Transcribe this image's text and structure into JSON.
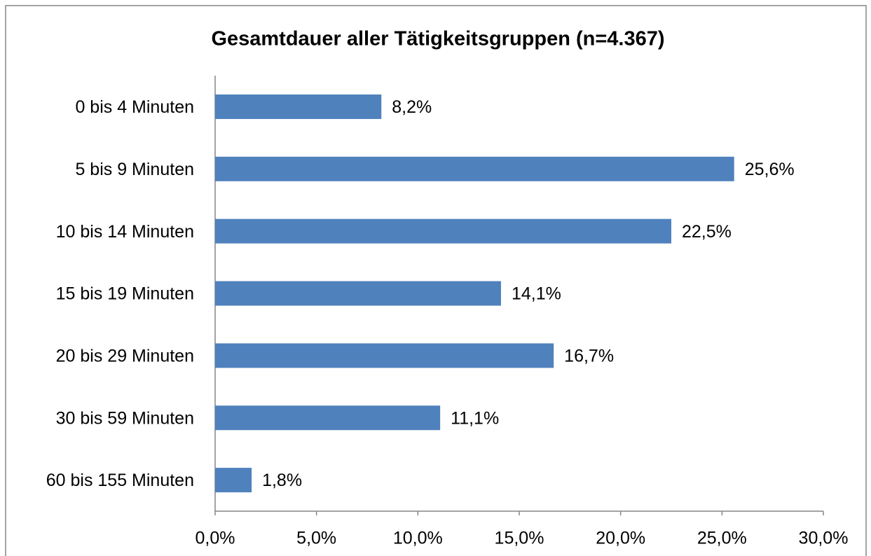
{
  "chart_data": {
    "type": "bar",
    "orientation": "horizontal",
    "title": "Gesamtdauer aller Tätigkeitsgruppen (n=4.367)",
    "categories": [
      "0 bis 4 Minuten",
      "5 bis 9 Minuten",
      "10 bis 14 Minuten",
      "15 bis 19 Minuten",
      "20 bis 29 Minuten",
      "30 bis 59 Minuten",
      "60 bis 155 Minuten"
    ],
    "values": [
      8.2,
      25.6,
      22.5,
      14.1,
      16.7,
      11.1,
      1.8
    ],
    "value_labels": [
      "8,2%",
      "25,6%",
      "22,5%",
      "14,1%",
      "16,7%",
      "11,1%",
      "1,8%"
    ],
    "color": "#4f81bd",
    "xlim": [
      0,
      30
    ],
    "xticks": [
      {
        "value": 0,
        "label": "0,0%"
      },
      {
        "value": 5,
        "label": "5,0%"
      },
      {
        "value": 10,
        "label": "10,0%"
      },
      {
        "value": 15,
        "label": "15,0%"
      },
      {
        "value": 20,
        "label": "20,0%"
      },
      {
        "value": 25,
        "label": "25,0%"
      },
      {
        "value": 30,
        "label": "30,0%"
      }
    ],
    "grid": false
  }
}
